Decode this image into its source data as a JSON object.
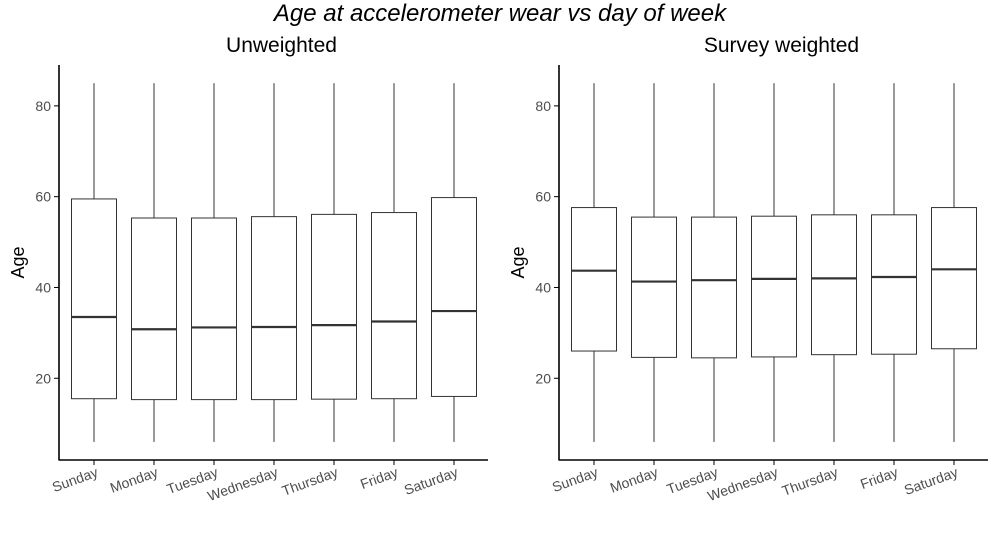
{
  "title": "Age at accelerometer wear vs day of week",
  "colors": {
    "box_fill": "#ffffff",
    "box_stroke": "#333333",
    "axis": "#000000",
    "text": "#4d4d4d"
  },
  "chart_data": [
    {
      "type": "boxplot",
      "title": "Unweighted",
      "xlabel": "",
      "ylabel": "Age",
      "ylim": [
        2,
        89
      ],
      "yticks": [
        20,
        40,
        60,
        80
      ],
      "grid": false,
      "categories": [
        "Sunday",
        "Monday",
        "Tuesday",
        "Wednesday",
        "Thursday",
        "Friday",
        "Saturday"
      ],
      "boxes": [
        {
          "min": 6,
          "q1": 15.5,
          "median": 33.5,
          "q3": 59.5,
          "max": 85
        },
        {
          "min": 6,
          "q1": 15.3,
          "median": 30.8,
          "q3": 55.3,
          "max": 85
        },
        {
          "min": 6,
          "q1": 15.3,
          "median": 31.2,
          "q3": 55.3,
          "max": 85
        },
        {
          "min": 6,
          "q1": 15.3,
          "median": 31.3,
          "q3": 55.6,
          "max": 85
        },
        {
          "min": 6,
          "q1": 15.4,
          "median": 31.7,
          "q3": 56.1,
          "max": 85
        },
        {
          "min": 6,
          "q1": 15.5,
          "median": 32.5,
          "q3": 56.5,
          "max": 85
        },
        {
          "min": 6,
          "q1": 16.0,
          "median": 34.8,
          "q3": 59.8,
          "max": 85
        }
      ]
    },
    {
      "type": "boxplot",
      "title": "Survey weighted",
      "xlabel": "",
      "ylabel": "Age",
      "ylim": [
        2,
        89
      ],
      "yticks": [
        20,
        40,
        60,
        80
      ],
      "grid": false,
      "categories": [
        "Sunday",
        "Monday",
        "Tuesday",
        "Wednesday",
        "Thursday",
        "Friday",
        "Saturday"
      ],
      "boxes": [
        {
          "min": 6,
          "q1": 26.0,
          "median": 43.7,
          "q3": 57.6,
          "max": 85
        },
        {
          "min": 6,
          "q1": 24.6,
          "median": 41.3,
          "q3": 55.5,
          "max": 85
        },
        {
          "min": 6,
          "q1": 24.5,
          "median": 41.6,
          "q3": 55.5,
          "max": 85
        },
        {
          "min": 6,
          "q1": 24.7,
          "median": 41.9,
          "q3": 55.7,
          "max": 85
        },
        {
          "min": 6,
          "q1": 25.2,
          "median": 42.0,
          "q3": 56.0,
          "max": 85
        },
        {
          "min": 6,
          "q1": 25.3,
          "median": 42.3,
          "q3": 56.0,
          "max": 85
        },
        {
          "min": 6,
          "q1": 26.5,
          "median": 44.0,
          "q3": 57.6,
          "max": 85
        }
      ]
    }
  ]
}
